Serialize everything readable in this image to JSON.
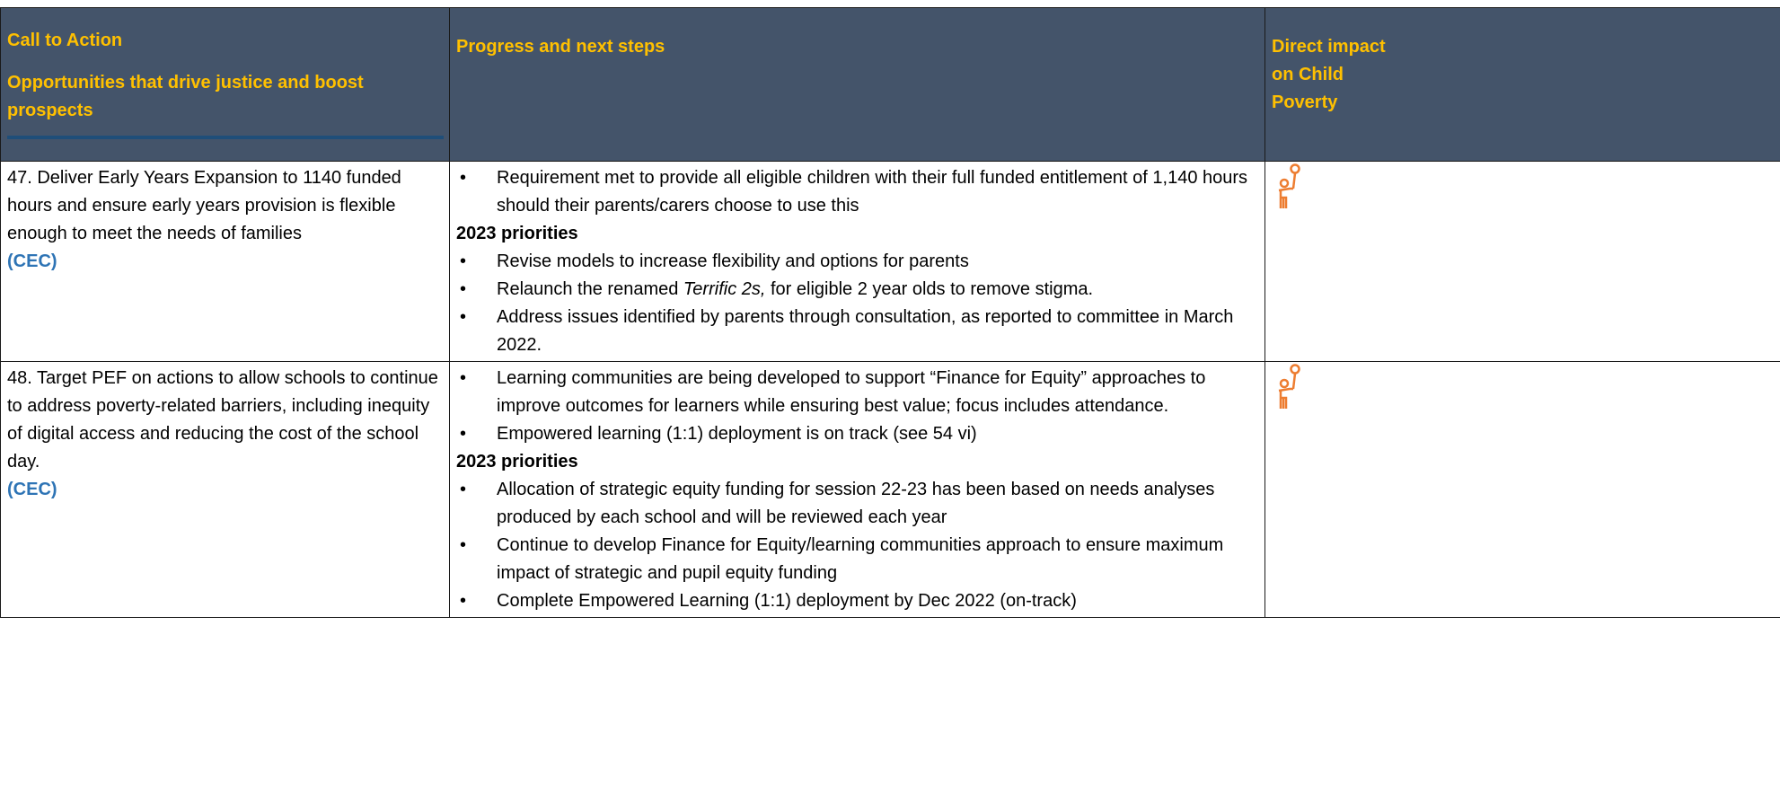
{
  "header": {
    "col1_title": "Call to Action",
    "col1_subtitle": "Opportunities that drive justice and boost prospects",
    "col2": "Progress and next steps",
    "col3": "Direct impact on Child Poverty"
  },
  "rows": [
    {
      "action": "47. Deliver Early Years Expansion to 1140 funded hours and ensure early years provision is flexible enough to meet the needs of families",
      "org": "(CEC)",
      "progress": [
        "Requirement met to provide all eligible children with their full funded entitlement of 1,140 hours should their parents/carers choose to use this"
      ],
      "priorities_heading": "2023 priorities",
      "priorities": [
        "Revise models to increase flexibility and options for parents",
        {
          "before": "Relaunch the renamed ",
          "italic": "Terrific 2s,",
          "after": " for eligible 2 year olds to remove stigma."
        },
        "Address issues identified by parents through consultation, as reported to committee in March 2022."
      ]
    },
    {
      "action": "48. Target PEF on actions to allow schools to continue to address poverty-related barriers, including inequity of digital access and reducing the cost of the school day.",
      "org": "(CEC)",
      "progress": [
        "Learning communities are being developed to support “Finance for Equity” approaches to  improve outcomes for learners while ensuring best value; focus includes attendance.",
        "Empowered learning (1:1) deployment is on track (see 54 vi)"
      ],
      "priorities_heading": "2023 priorities",
      "priorities": [
        "Allocation of strategic equity funding for session 22-23 has been based on needs analyses produced by each school and will be reviewed each year",
        "Continue to develop Finance for Equity/learning communities approach to ensure maximum impact of strategic and pupil equity funding",
        "Complete Empowered Learning (1:1) deployment by Dec 2022 (on-track)"
      ]
    }
  ]
}
